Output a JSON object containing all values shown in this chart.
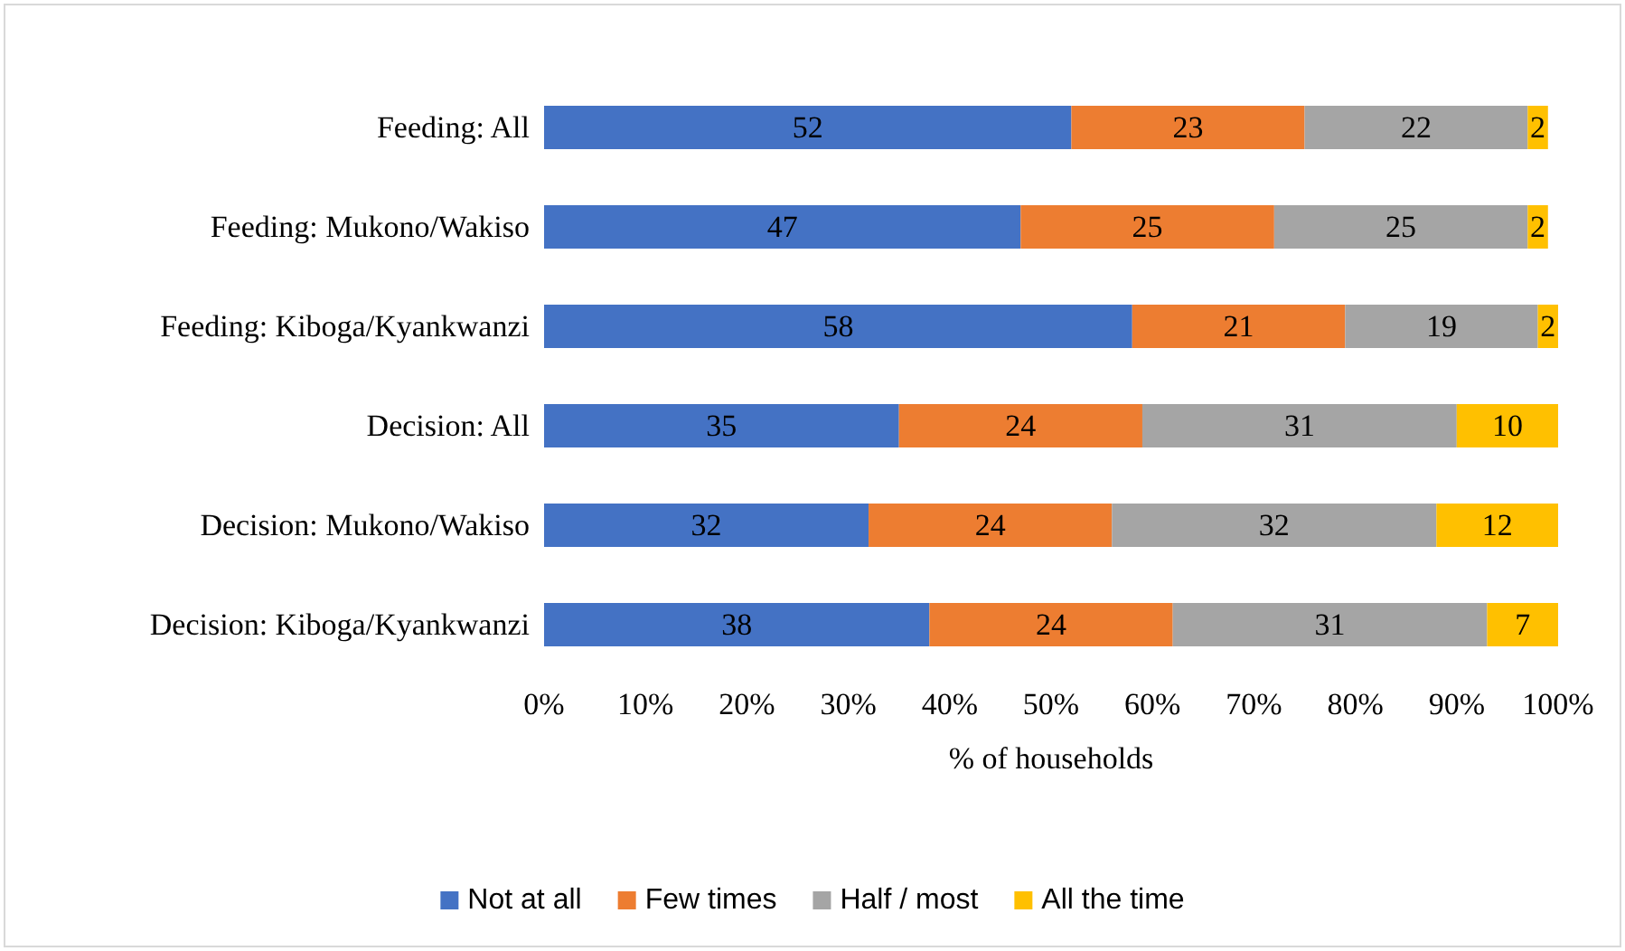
{
  "chart_data": {
    "type": "bar",
    "orientation": "horizontal",
    "stacked": true,
    "xlabel": "% of households",
    "categories": [
      "Feeding: All",
      "Feeding: Mukono/Wakiso",
      "Feeding: Kiboga/Kyankwanzi",
      "Decision: All",
      "Decision: Mukono/Wakiso",
      "Decision: Kiboga/Kyankwanzi"
    ],
    "series": [
      {
        "name": "Not at all",
        "color": "#4472c4",
        "values": [
          52,
          47,
          58,
          35,
          32,
          38
        ]
      },
      {
        "name": "Few times",
        "color": "#ed7d31",
        "values": [
          23,
          25,
          21,
          24,
          24,
          24
        ]
      },
      {
        "name": "Half / most",
        "color": "#a5a5a5",
        "values": [
          22,
          25,
          19,
          31,
          32,
          31
        ]
      },
      {
        "name": "All the time",
        "color": "#ffc000",
        "values": [
          2,
          2,
          2,
          10,
          12,
          7
        ]
      }
    ],
    "xlim": [
      0,
      100
    ],
    "xticks": [
      {
        "value": 0,
        "label": "0%"
      },
      {
        "value": 10,
        "label": "10%"
      },
      {
        "value": 20,
        "label": "20%"
      },
      {
        "value": 30,
        "label": "30%"
      },
      {
        "value": 40,
        "label": "40%"
      },
      {
        "value": 50,
        "label": "50%"
      },
      {
        "value": 60,
        "label": "60%"
      },
      {
        "value": 70,
        "label": "70%"
      },
      {
        "value": 80,
        "label": "80%"
      },
      {
        "value": 90,
        "label": "90%"
      },
      {
        "value": 100,
        "label": "100%"
      }
    ],
    "data_labels": true,
    "grid": false,
    "legend": "bottom"
  }
}
